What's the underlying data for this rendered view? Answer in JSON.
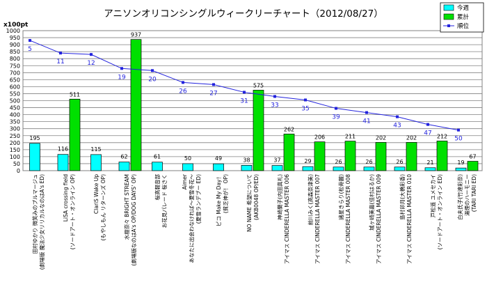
{
  "chart_data": {
    "type": "bar",
    "title": "アニソンオリコンシングルウィークリーチャート（2012/08/27）",
    "ylabel": "x100pt",
    "ylim": [
      0,
      1000
    ],
    "yticks": [
      0,
      50,
      100,
      150,
      200,
      250,
      300,
      350,
      400,
      450,
      500,
      550,
      600,
      650,
      700,
      750,
      800,
      850,
      900,
      950,
      1000
    ],
    "grid": true,
    "legend_position": "top-right",
    "colors": {
      "this_week": "#00FFFF",
      "cumulative": "#00E000",
      "rank": "#2222DD"
    },
    "categories": [
      [
        "田村ゆかり 微笑みのプルマージュ",
        "(劇場版 魔法少女リリカルなのはA's ED)"
      ],
      [
        "LiSA crossing field",
        "(ソードアート・オンライン OP)"
      ],
      [
        "ClariS Wake Up",
        "(もやしもん リターンズ OP)"
      ],
      [
        "水樹奈々 BRIGHT STREAM",
        "(劇場版なのはA's OP/DOG DAYS' OP)"
      ],
      [
        "桜高軽音部",
        "お花見パレード 桜さく"
      ],
      [
        "Aimer",
        "あなたに出会わなければ〜夏雪冬花〜",
        "(夏雪ランデブー ED)"
      ],
      [
        "ピコ Make My Day！",
        "(貧乏神が！ OP)"
      ],
      [
        "NO NAME 希望について",
        "(AKB0048 OP/ED)"
      ],
      [
        "神崎蘭子(内田真礼)",
        "アイマス CINDERELLA MASTER 006"
      ],
      [
        "前川みく(高森奈津美)",
        "アイマス CINDERELLA MASTER 007"
      ],
      [
        "諸星きらり(松嵜麗)",
        "アイマス CINDERELLA MASTER 008"
      ],
      [
        "城ヶ崎美嘉(佳村はるか)",
        "アイマス CINDERELLA MASTER 009"
      ],
      [
        "島村卯月(大橋彩香)",
        "アイマス CINDERELLA MASTER 010"
      ],
      [
        "戸松遥 ユメセカイ",
        "(ソードアート・オンライン ED)"
      ],
      [
        "白夫氏子(竹達彩奈)",
        "湯煙のハーモニー",
        "(TARI TARI ED)"
      ]
    ],
    "series": [
      {
        "name": "今週",
        "type": "bar",
        "values": [
          195,
          116,
          115,
          62,
          61,
          50,
          49,
          38,
          37,
          29,
          26,
          26,
          26,
          21,
          19
        ]
      },
      {
        "name": "累計",
        "type": "bar",
        "values": [
          null,
          511,
          null,
          937,
          null,
          null,
          null,
          575,
          262,
          206,
          211,
          202,
          202,
          212,
          67
        ]
      },
      {
        "name": "順位",
        "type": "line",
        "axis": "rank",
        "values": [
          5,
          11,
          12,
          19,
          20,
          26,
          27,
          31,
          33,
          35,
          39,
          41,
          43,
          47,
          50
        ]
      }
    ],
    "rank_positions": [
      930,
      840,
      830,
      730,
      715,
      630,
      615,
      560,
      530,
      505,
      445,
      415,
      385,
      330,
      290
    ]
  }
}
